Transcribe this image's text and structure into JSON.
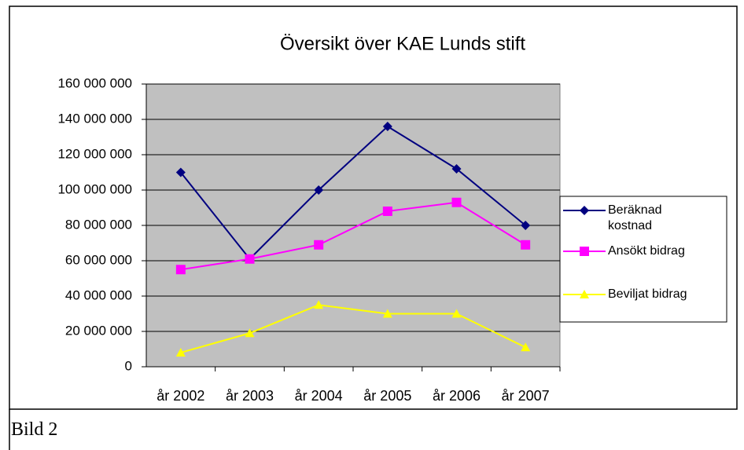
{
  "chart_data": {
    "type": "line",
    "title": "Översikt över KAE Lunds stift",
    "categories": [
      "år 2002",
      "år 2003",
      "år 2004",
      "år 2005",
      "år 2006",
      "år 2007"
    ],
    "series": [
      {
        "name": "Beräknad kostnad",
        "color": "#000080",
        "marker": "diamond",
        "values": [
          110000000,
          61000000,
          100000000,
          136000000,
          112000000,
          80000000
        ]
      },
      {
        "name": "Ansökt bidrag",
        "color": "#ff00ff",
        "marker": "square",
        "values": [
          55000000,
          61000000,
          69000000,
          88000000,
          93000000,
          69000000
        ]
      },
      {
        "name": "Beviljat bidrag",
        "color": "#ffff00",
        "marker": "triangle",
        "values": [
          8000000,
          19000000,
          35000000,
          30000000,
          30000000,
          11000000
        ]
      }
    ],
    "ylim": [
      0,
      160000000
    ],
    "yticks": [
      0,
      {
        "value": 20000000,
        "label": "20 000 000"
      },
      {
        "value": 40000000,
        "label": "40 000 000"
      },
      {
        "value": 60000000,
        "label": "60 000 000"
      },
      {
        "value": 80000000,
        "label": "80 000 000"
      },
      {
        "value": 100000000,
        "label": "100 000 000"
      },
      {
        "value": 120000000,
        "label": "120 000 000"
      },
      {
        "value": 140000000,
        "label": "140 000 000"
      },
      {
        "value": 160000000,
        "label": "160 000 000"
      }
    ],
    "grid": true,
    "plot_background": "#c0c0c0",
    "legend": "right"
  },
  "caption": "Bild 2"
}
